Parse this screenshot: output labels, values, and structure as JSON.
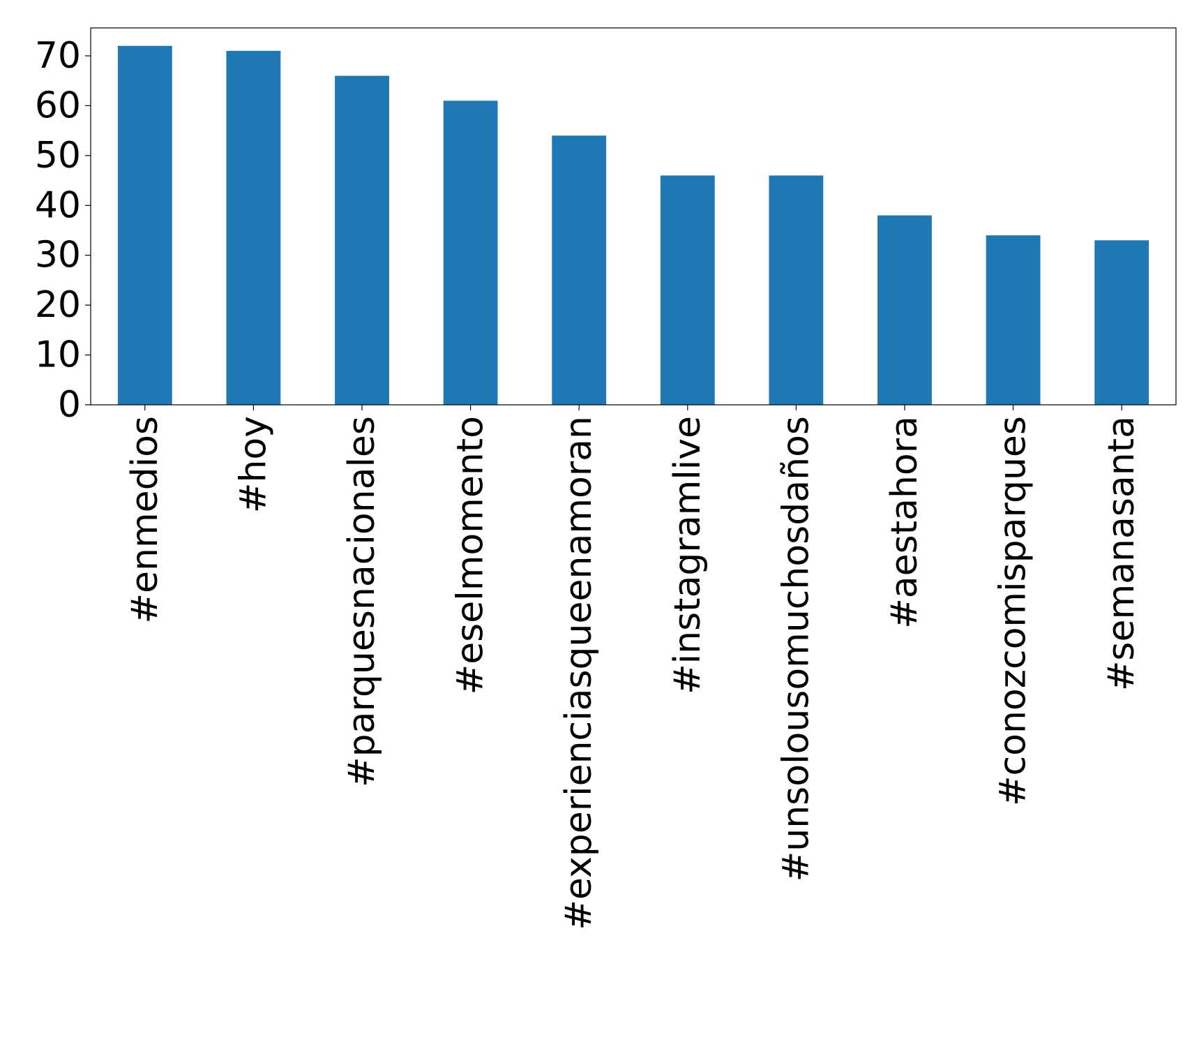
{
  "chart_data": {
    "type": "bar",
    "title": "",
    "xlabel": "",
    "ylabel": "",
    "categories": [
      "#enmedios",
      "#hoy",
      "#parquesnacionales",
      "#eselmomento",
      "#experienciasqueenamoran",
      "#instagramlive",
      "#unsolousomuchosdaños",
      "#aestahora",
      "#conozcomisparques",
      "#semanasanta"
    ],
    "values": [
      72,
      71,
      66,
      61,
      54,
      46,
      46,
      38,
      34,
      33
    ],
    "ylim": [
      0,
      75.6
    ],
    "yticks": [
      0,
      10,
      20,
      30,
      40,
      50,
      60,
      70
    ],
    "ytick_labels": [
      "0",
      "10",
      "20",
      "30",
      "40",
      "50",
      "60",
      "70"
    ],
    "bar_color": "#1f77b4",
    "grid": false,
    "legend": "none",
    "xtick_rotation": "vertical"
  }
}
